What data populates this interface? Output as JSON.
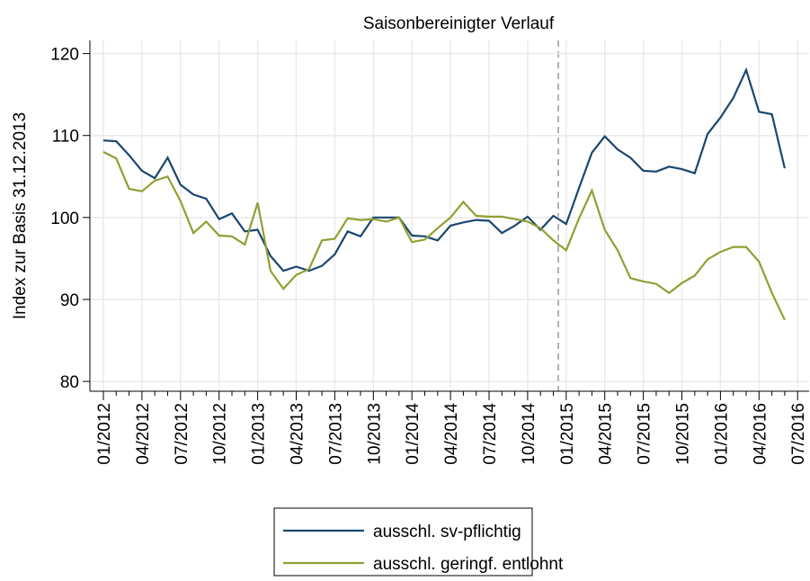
{
  "chart_data": {
    "type": "line",
    "title": "Saisonbereinigter Verlauf",
    "y_label": "Index zur Basis 31.12.2013",
    "categories": [
      "01/2012",
      null,
      null,
      "04/2012",
      null,
      null,
      "07/2012",
      null,
      null,
      "10/2012",
      null,
      null,
      "01/2013",
      null,
      null,
      "04/2013",
      null,
      null,
      "07/2013",
      null,
      null,
      "10/2013",
      null,
      null,
      "01/2014",
      null,
      null,
      "04/2014",
      null,
      null,
      "07/2014",
      null,
      null,
      "10/2014",
      null,
      null,
      "01/2015",
      null,
      null,
      "04/2015",
      null,
      null,
      "07/2015",
      null,
      null,
      "10/2015",
      null,
      null,
      "01/2016",
      null,
      null,
      "04/2016",
      null,
      null,
      "07/2016"
    ],
    "series": [
      {
        "name": "ausschl. sv-pflichtig",
        "color": "#1a476f",
        "values": [
          109.4,
          109.3,
          107.6,
          105.7,
          104.8,
          107.3,
          104.0,
          102.8,
          102.3,
          99.8,
          100.5,
          98.3,
          98.5,
          95.3,
          93.5,
          94.0,
          93.5,
          94.1,
          95.5,
          98.3,
          97.7,
          100.0,
          100.0,
          100.0,
          97.8,
          97.7,
          97.2,
          99.0,
          99.4,
          99.7,
          99.6,
          98.1,
          99.0,
          100.1,
          98.5,
          100.2,
          99.2,
          103.6,
          107.9,
          109.9,
          108.3,
          107.3,
          105.7,
          105.6,
          106.2,
          105.9,
          105.4,
          110.2,
          112.2,
          114.6,
          118.0,
          112.9,
          112.6,
          106.0,
          null
        ]
      },
      {
        "name": "ausschl. geringf. entlohnt",
        "color": "#90a032",
        "values": [
          108.0,
          107.2,
          103.5,
          103.2,
          104.5,
          105.0,
          102.0,
          98.1,
          99.5,
          97.8,
          97.7,
          96.7,
          101.8,
          93.5,
          91.3,
          93.0,
          93.7,
          97.2,
          97.4,
          99.9,
          99.7,
          99.8,
          99.5,
          100.0,
          97.0,
          97.3,
          98.7,
          100.0,
          101.9,
          100.2,
          100.1,
          100.1,
          99.8,
          99.5,
          98.7,
          97.2,
          96.0,
          99.9,
          103.3,
          98.5,
          96.0,
          92.6,
          92.2,
          91.9,
          90.8,
          92.0,
          92.9,
          94.9,
          95.8,
          96.4,
          96.4,
          94.6,
          90.8,
          87.5,
          null
        ]
      }
    ],
    "ylim": [
      78.8,
      121.6
    ],
    "yticks": [
      80,
      90,
      100,
      110,
      120
    ],
    "grid": true
  }
}
